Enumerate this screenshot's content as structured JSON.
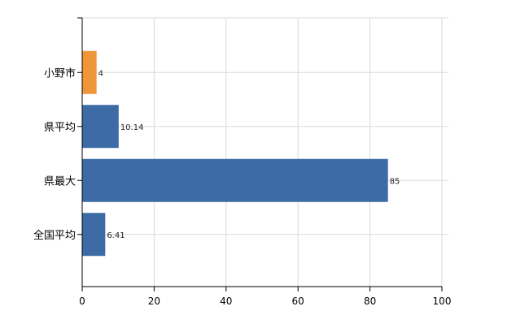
{
  "chart_data": {
    "type": "bar",
    "orientation": "horizontal",
    "categories": [
      "小野市",
      "県平均",
      "県最大",
      "全国平均"
    ],
    "values": [
      4,
      10.14,
      85,
      6.41
    ],
    "value_labels": [
      "4",
      "10.14",
      "85",
      "6.41"
    ],
    "highlight": [
      "小野市"
    ],
    "xlim": [
      0,
      100
    ],
    "xticks": [
      "0",
      "20",
      "40",
      "60",
      "80",
      "100"
    ],
    "grid": true,
    "title": "",
    "xlabel": "",
    "ylabel": "",
    "colors": {
      "highlight": "#F0963A",
      "default": "#3C6BA5"
    }
  }
}
